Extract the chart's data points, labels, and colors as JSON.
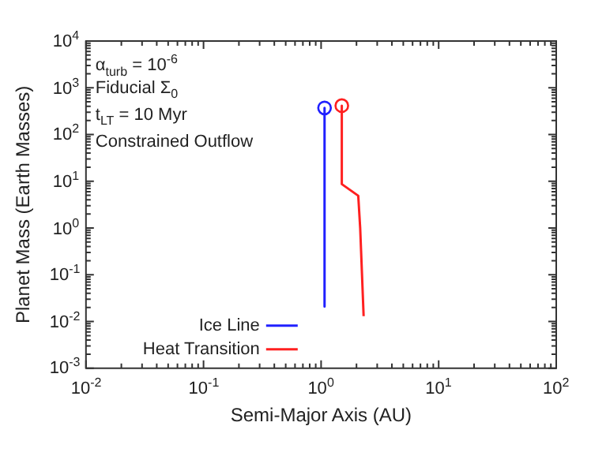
{
  "chart_data": {
    "type": "line",
    "xlabel": "Semi-Major Axis (AU)",
    "ylabel": "Planet Mass (Earth Masses)",
    "log": "xy",
    "grid": false,
    "legend": "bottom left",
    "line_style": "solid",
    "marker": "none",
    "xlim": [
      0.01,
      100
    ],
    "ylim": [
      0.001,
      10000
    ],
    "xticks": [
      {
        "value": 0.01,
        "label": "10$^{-2}$"
      },
      {
        "value": 0.1,
        "label": "10$^{-1}$"
      },
      {
        "value": 1,
        "label": "10$^{0}$"
      },
      {
        "value": 10,
        "label": "10$^{1}$"
      },
      {
        "value": 100,
        "label": "10$^{2}$"
      }
    ],
    "yticks": [
      {
        "value": 0.001,
        "label": "10$^{-3}$"
      },
      {
        "value": 0.01,
        "label": "10$^{-2}$"
      },
      {
        "value": 0.1,
        "label": "10$^{-1}$"
      },
      {
        "value": 1,
        "label": "10$^{0}$"
      },
      {
        "value": 10,
        "label": "10$^{1}$"
      },
      {
        "value": 100,
        "label": "10$^{2}$"
      },
      {
        "value": 1000,
        "label": "10$^{3}$"
      },
      {
        "value": 10000,
        "label": "10$^{4}$"
      }
    ],
    "annotations": [
      "α$_{turb}$ = 10$^{-6}$",
      "Fiducial Σ$_{0}$",
      "t$_{LT}$ = 10 Myr",
      "Constrained Outflow"
    ],
    "series": [
      {
        "name": "Ice Line",
        "color": "#2020ff",
        "x": [
          1.07,
          1.07
        ],
        "values": [
          370,
          0.021
        ]
      },
      {
        "name": "Heat Transition",
        "color": "#ff2020",
        "x": [
          1.5,
          1.5,
          2.07,
          2.15,
          2.3
        ],
        "values": [
          415,
          8.7,
          4.9,
          1,
          0.013
        ]
      },
      {
        "type": "scatter",
        "marker": "circle",
        "color": "#2020ff",
        "x": [
          1.07
        ],
        "values": [
          370
        ]
      },
      {
        "type": "scatter",
        "marker": "circle",
        "color": "#ff2020",
        "x": [
          1.5
        ],
        "values": [
          415
        ]
      }
    ]
  }
}
